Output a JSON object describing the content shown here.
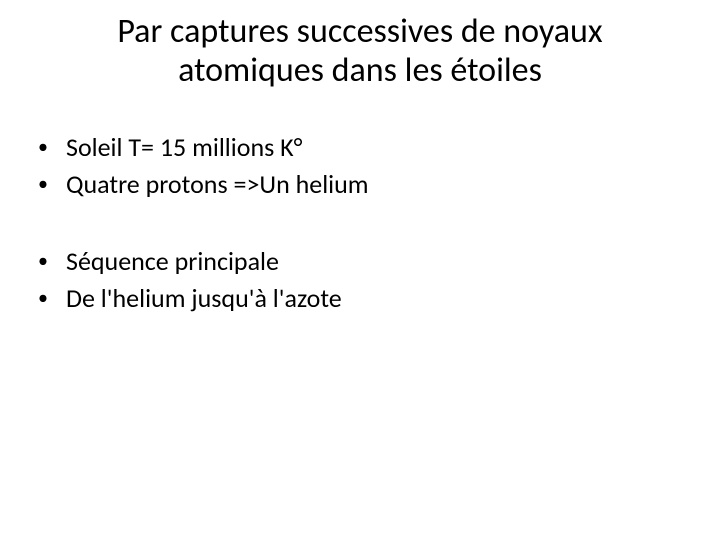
{
  "title": "Par captures successives  de noyaux atomiques  dans les  étoiles",
  "group1": {
    "item1": "Soleil T= 15 millions K°",
    "item2": "Quatre protons =>Un helium"
  },
  "group2": {
    "item1": "Séquence principale",
    "item2": "De l'helium jusqu'à l'azote"
  },
  "colors": {
    "background": "#ffffff",
    "text": "#000000"
  },
  "typography": {
    "title_fontsize": 34,
    "body_fontsize": 26,
    "font_family": "Calibri"
  }
}
